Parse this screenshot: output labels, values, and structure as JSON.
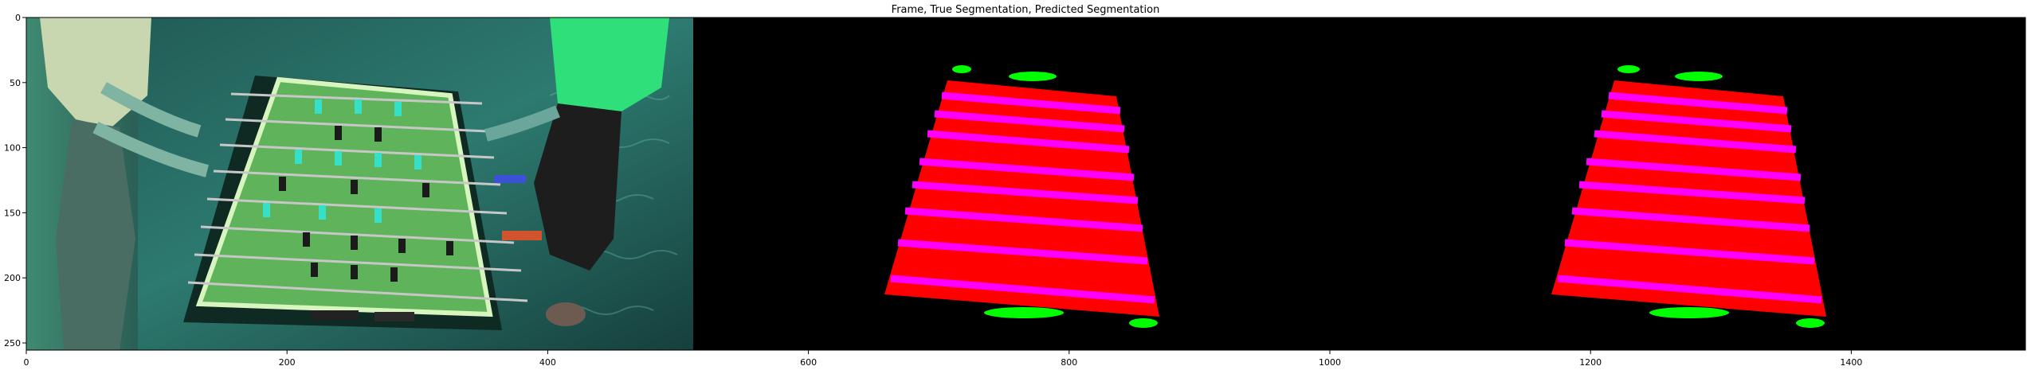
{
  "figure": {
    "title": "Frame, True Segmentation, Predicted Segmentation",
    "panels": [
      {
        "name": "frame"
      },
      {
        "name": "true-segmentation"
      },
      {
        "name": "predicted-segmentation"
      }
    ]
  },
  "axes": {
    "x_ticks": [
      "0",
      "200",
      "400",
      "600",
      "800",
      "1000",
      "1200",
      "1400"
    ],
    "y_ticks": [
      "0",
      "50",
      "100",
      "150",
      "200",
      "250"
    ]
  },
  "colors": {
    "background": "#000000",
    "table": "#ff0000",
    "rods": "#ff00ff",
    "handles": "#00ff00",
    "figure_bg": "#ffffff"
  }
}
